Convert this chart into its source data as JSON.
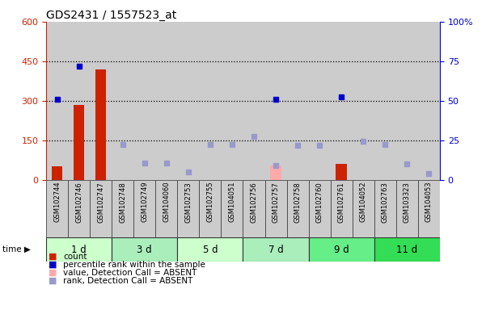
{
  "title": "GDS2431 / 1557523_at",
  "samples": [
    "GSM102744",
    "GSM102746",
    "GSM102747",
    "GSM102748",
    "GSM102749",
    "GSM104060",
    "GSM102753",
    "GSM102755",
    "GSM104051",
    "GSM102756",
    "GSM102757",
    "GSM102758",
    "GSM102760",
    "GSM102761",
    "GSM104052",
    "GSM102763",
    "GSM103323",
    "GSM104053"
  ],
  "time_groups": [
    {
      "label": "1 d",
      "start": 0,
      "end": 3,
      "color": "#ccffcc"
    },
    {
      "label": "3 d",
      "start": 3,
      "end": 6,
      "color": "#aaeebb"
    },
    {
      "label": "5 d",
      "start": 6,
      "end": 9,
      "color": "#ccffcc"
    },
    {
      "label": "7 d",
      "start": 9,
      "end": 12,
      "color": "#aaeebb"
    },
    {
      "label": "9 d",
      "start": 12,
      "end": 15,
      "color": "#66ee88"
    },
    {
      "label": "11 d",
      "start": 15,
      "end": 18,
      "color": "#33dd55"
    }
  ],
  "count_values": [
    50,
    285,
    420,
    0,
    0,
    0,
    0,
    0,
    0,
    0,
    0,
    0,
    0,
    60,
    0,
    0,
    0,
    0
  ],
  "count_absent_values": [
    0,
    0,
    0,
    0,
    0,
    0,
    0,
    0,
    0,
    0,
    55,
    0,
    0,
    0,
    0,
    0,
    0,
    0
  ],
  "percentile_values": [
    305,
    430,
    0,
    0,
    0,
    0,
    0,
    0,
    0,
    0,
    305,
    0,
    0,
    315,
    0,
    0,
    0,
    0
  ],
  "rank_absent_values": [
    0,
    0,
    0,
    135,
    65,
    65,
    30,
    135,
    135,
    165,
    55,
    130,
    130,
    0,
    145,
    135,
    60,
    25
  ],
  "left_ylim": [
    0,
    600
  ],
  "right_ylim": [
    0,
    100
  ],
  "left_yticks": [
    0,
    150,
    300,
    450,
    600
  ],
  "right_yticks": [
    0,
    25,
    50,
    75,
    100
  ],
  "right_yticklabels": [
    "0",
    "25",
    "50",
    "75",
    "100%"
  ],
  "hlines": [
    150,
    300,
    450
  ],
  "bar_color_count": "#cc2200",
  "bar_color_absent": "#ffaaaa",
  "dot_color_percentile": "#0000cc",
  "dot_color_rank_absent": "#9999cc",
  "background_color": "#ffffff",
  "col_bg_color": "#cccccc",
  "bar_width": 0.5
}
